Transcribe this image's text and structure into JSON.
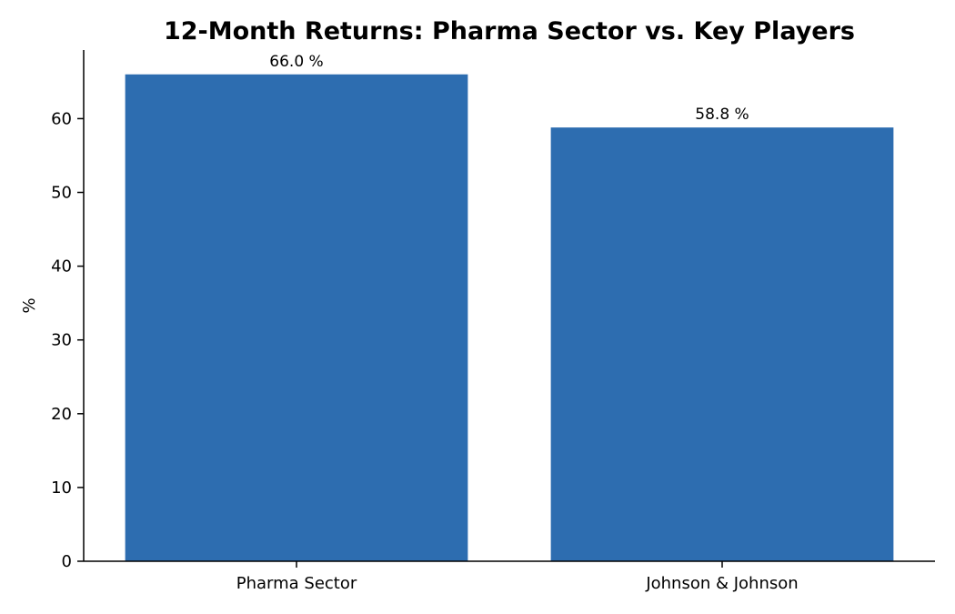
{
  "chart_data": {
    "type": "bar",
    "title": "12-Month Returns: Pharma Sector vs. Key Players",
    "xlabel": "",
    "ylabel": "%",
    "categories": [
      "Pharma Sector",
      "Johnson & Johnson"
    ],
    "values": [
      66.0,
      58.8
    ],
    "data_labels": [
      "66.0 %",
      "58.8 %"
    ],
    "ylim": [
      0,
      69.3
    ],
    "yticks": [
      0,
      10,
      20,
      30,
      40,
      50,
      60
    ],
    "grid": false,
    "legend": "none",
    "bar_color": "#2d6db0"
  }
}
